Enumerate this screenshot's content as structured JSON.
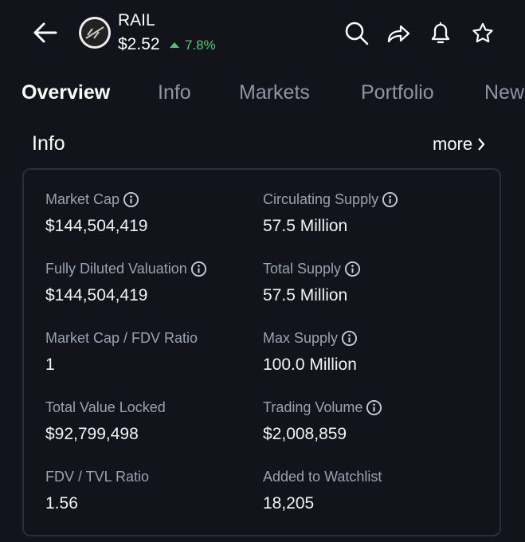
{
  "header": {
    "symbol": "RAIL",
    "price": "$2.52",
    "change": "7.8%"
  },
  "tabs": [
    "Overview",
    "Info",
    "Markets",
    "Portfolio",
    "New"
  ],
  "section": {
    "title": "Info",
    "more": "more"
  },
  "stats": [
    {
      "label": "Market Cap",
      "value": "$144,504,419"
    },
    {
      "label": "Circulating Supply",
      "value": "57.5 Million"
    },
    {
      "label": "Fully Diluted Valuation",
      "value": "$144,504,419"
    },
    {
      "label": "Total Supply",
      "value": "57.5 Million"
    },
    {
      "label": "Market Cap / FDV Ratio",
      "value": "1"
    },
    {
      "label": "Max Supply",
      "value": "100.0 Million"
    },
    {
      "label": "Total Value Locked",
      "value": "$92,799,498"
    },
    {
      "label": "Trading Volume",
      "value": "$2,008,859"
    },
    {
      "label": "FDV / TVL Ratio",
      "value": "1.56"
    },
    {
      "label": "Added to Watchlist",
      "value": "18,205"
    }
  ]
}
